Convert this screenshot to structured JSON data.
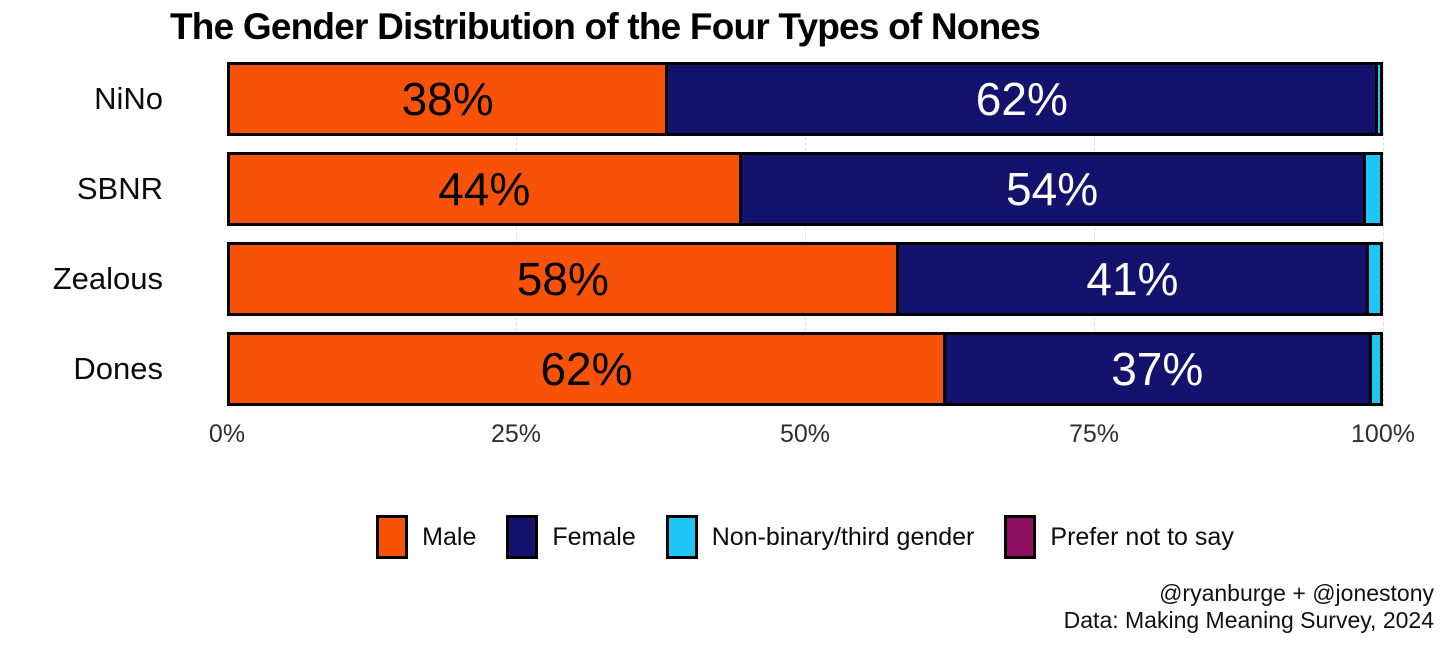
{
  "title": "The Gender Distribution of the Four Types of Nones",
  "chart_data": {
    "type": "bar",
    "orientation": "horizontal",
    "stacked": true,
    "unit": "percent",
    "title": "The Gender Distribution of the Four Types of Nones",
    "categories": [
      "NiNo",
      "SBNR",
      "Zealous",
      "Dones"
    ],
    "series": [
      {
        "name": "Male",
        "color": "#F85208",
        "label_color": "#000000",
        "values": [
          38,
          44,
          58,
          62
        ],
        "labels": [
          "38%",
          "44%",
          "58%",
          "62%"
        ]
      },
      {
        "name": "Female",
        "color": "#13136E",
        "label_color": "#FFFFFF",
        "values": [
          62,
          54,
          41,
          37
        ],
        "labels": [
          "62%",
          "54%",
          "41%",
          "37%"
        ]
      },
      {
        "name": "Non-binary/third gender",
        "color": "#1EC6F5",
        "label_color": "#000000",
        "values": [
          0.4,
          1.5,
          1.2,
          1.0
        ],
        "labels": [
          "",
          "",
          "",
          ""
        ]
      },
      {
        "name": "Prefer not to say",
        "color": "#8C0D5F",
        "label_color": "#FFFFFF",
        "values": [
          0,
          0,
          0,
          0
        ],
        "labels": [
          "",
          "",
          "",
          ""
        ]
      }
    ],
    "xlabel": "",
    "ylabel": "",
    "xlim": [
      0,
      100
    ],
    "x_ticks": [
      "0%",
      "25%",
      "50%",
      "75%",
      "100%"
    ],
    "x_tick_values": [
      0,
      25,
      50,
      75,
      100
    ],
    "grid": "faint dashed vertical gridlines at ticks",
    "legend_position": "bottom",
    "bar_border_color": "#000000"
  },
  "footer": {
    "credit": "@ryanburge + @jonestony",
    "source": "Data: Making Meaning Survey, 2024"
  }
}
